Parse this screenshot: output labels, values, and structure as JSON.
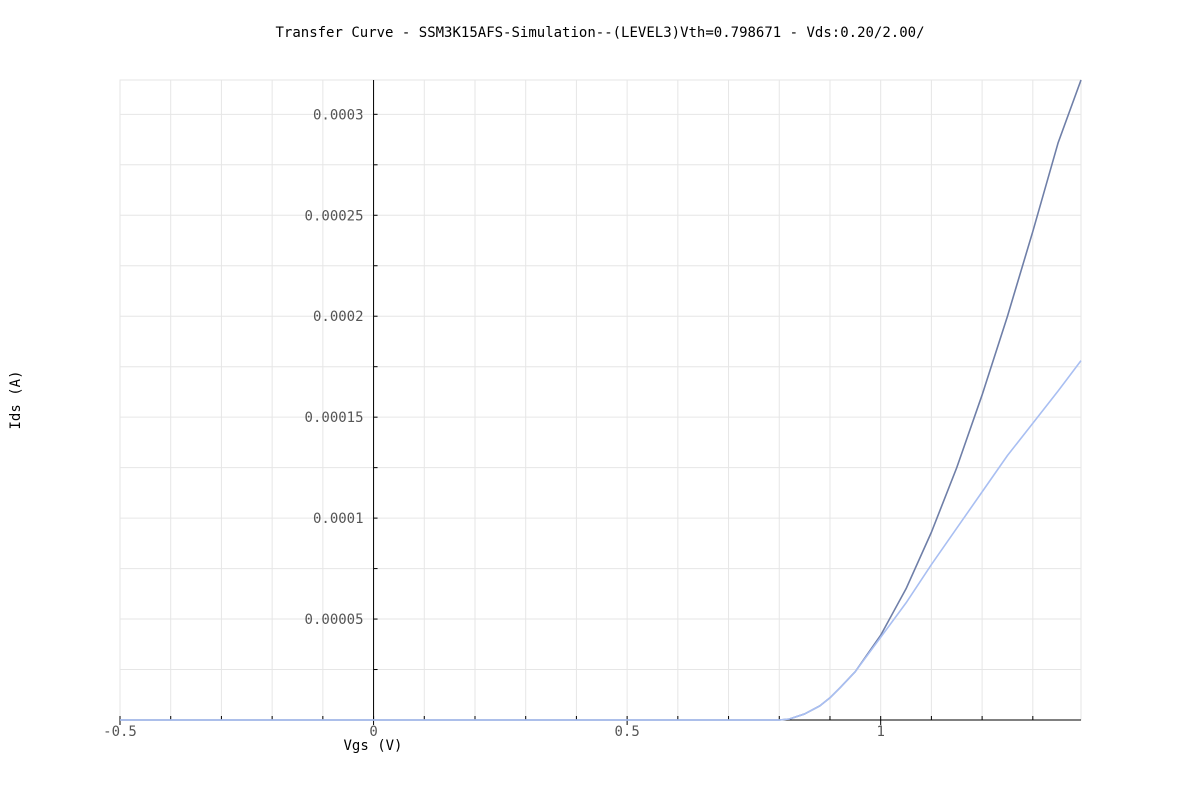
{
  "chart_data": {
    "type": "line",
    "title": "Transfer Curve - SSM3K15AFS-Simulation--(LEVEL3)Vth=0.798671 - Vds:0.20/2.00/",
    "xlabel": "Vgs (V)",
    "ylabel": "Ids (A)",
    "xlim": [
      -0.5,
      1.395
    ],
    "ylim": [
      0,
      0.000317
    ],
    "x_ticks": [
      {
        "value": -0.5,
        "label": "-0.5"
      },
      {
        "value": 0,
        "label": "0"
      },
      {
        "value": 0.5,
        "label": "0.5"
      },
      {
        "value": 1,
        "label": "1"
      }
    ],
    "y_ticks": [
      {
        "value": 5e-05,
        "label": "0.00005"
      },
      {
        "value": 0.0001,
        "label": "0.0001"
      },
      {
        "value": 0.00015,
        "label": "0.00015"
      },
      {
        "value": 0.0002,
        "label": "0.0002"
      },
      {
        "value": 0.00025,
        "label": "0.00025"
      },
      {
        "value": 0.0003,
        "label": "0.0003"
      }
    ],
    "grid": true,
    "legend": "none",
    "series": [
      {
        "color": "#6f7fa8",
        "x": [
          -0.5,
          0.0,
          0.5,
          0.8,
          0.82,
          0.85,
          0.88,
          0.9,
          0.92,
          0.95,
          1.0,
          1.05,
          1.1,
          1.15,
          1.2,
          1.25,
          1.3,
          1.35,
          1.395
        ],
        "y": [
          0,
          0,
          0,
          0,
          5e-07,
          3e-06,
          7e-06,
          1.1e-05,
          1.6e-05,
          2.4e-05,
          4.2e-05,
          6.5e-05,
          9.3e-05,
          0.000125,
          0.000161,
          0.0002,
          0.000242,
          0.000286,
          0.000317
        ]
      },
      {
        "color": "#a9bff2",
        "x": [
          -0.5,
          0.0,
          0.5,
          0.8,
          0.82,
          0.85,
          0.88,
          0.9,
          0.92,
          0.95,
          1.0,
          1.05,
          1.1,
          1.15,
          1.2,
          1.25,
          1.3,
          1.35,
          1.395
        ],
        "y": [
          0,
          0,
          0,
          0,
          5e-07,
          3e-06,
          7e-06,
          1.1e-05,
          1.6e-05,
          2.4e-05,
          4.1e-05,
          5.8e-05,
          7.7e-05,
          9.5e-05,
          0.000113,
          0.000131,
          0.000147,
          0.000163,
          0.000178
        ]
      }
    ]
  }
}
